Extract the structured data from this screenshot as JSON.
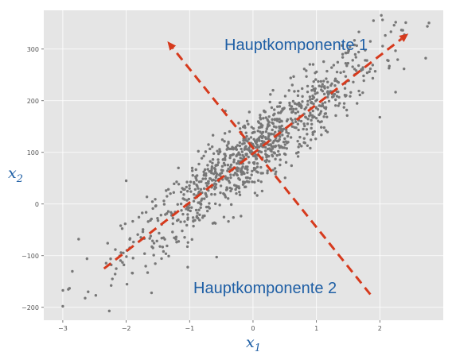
{
  "chart_data": {
    "type": "scatter",
    "xlabel": "x",
    "xlabel_sub": "1",
    "ylabel": "x",
    "ylabel_sub": "2",
    "xlim": [
      -3.3,
      3.0
    ],
    "ylim": [
      -225,
      375
    ],
    "xticks": [
      -3,
      -2,
      -1,
      0,
      1,
      2
    ],
    "yticks": [
      -200,
      -100,
      0,
      100,
      200,
      300
    ],
    "grid": true,
    "colors": {
      "background": "#e5e5e5",
      "grid": "#ffffff",
      "points": "#777777",
      "arrows": "#d63a1d",
      "text": "#1f5fa5"
    },
    "points": {
      "count": 1000,
      "center": [
        0,
        100
      ],
      "x_std": 1.0,
      "principal_slope": 94,
      "residual_std": 37,
      "outliers": [
        {
          "x": -3.0,
          "y": -198
        },
        {
          "x": -2.75,
          "y": -68
        },
        {
          "x": -2.6,
          "y": -170
        },
        {
          "x": -1.6,
          "y": -172
        },
        {
          "x": 1.9,
          "y": 355
        },
        {
          "x": 2.25,
          "y": 352
        },
        {
          "x": 2.75,
          "y": 344
        },
        {
          "x": 2.0,
          "y": 168
        },
        {
          "x": -2.0,
          "y": 45
        }
      ]
    },
    "arrows": [
      {
        "name": "Hauptkomponente 1",
        "from": [
          -2.35,
          -125
        ],
        "to": [
          2.45,
          330
        ]
      },
      {
        "name": "Hauptkomponente 2",
        "from": [
          1.85,
          -175
        ],
        "to": [
          -1.35,
          315
        ]
      }
    ],
    "annotations": [
      {
        "text": "Hauptkomponente 1",
        "x": -0.45,
        "y": 302
      },
      {
        "text": "Hauptkomponente 2",
        "x": -0.95,
        "y": -170
      }
    ]
  }
}
